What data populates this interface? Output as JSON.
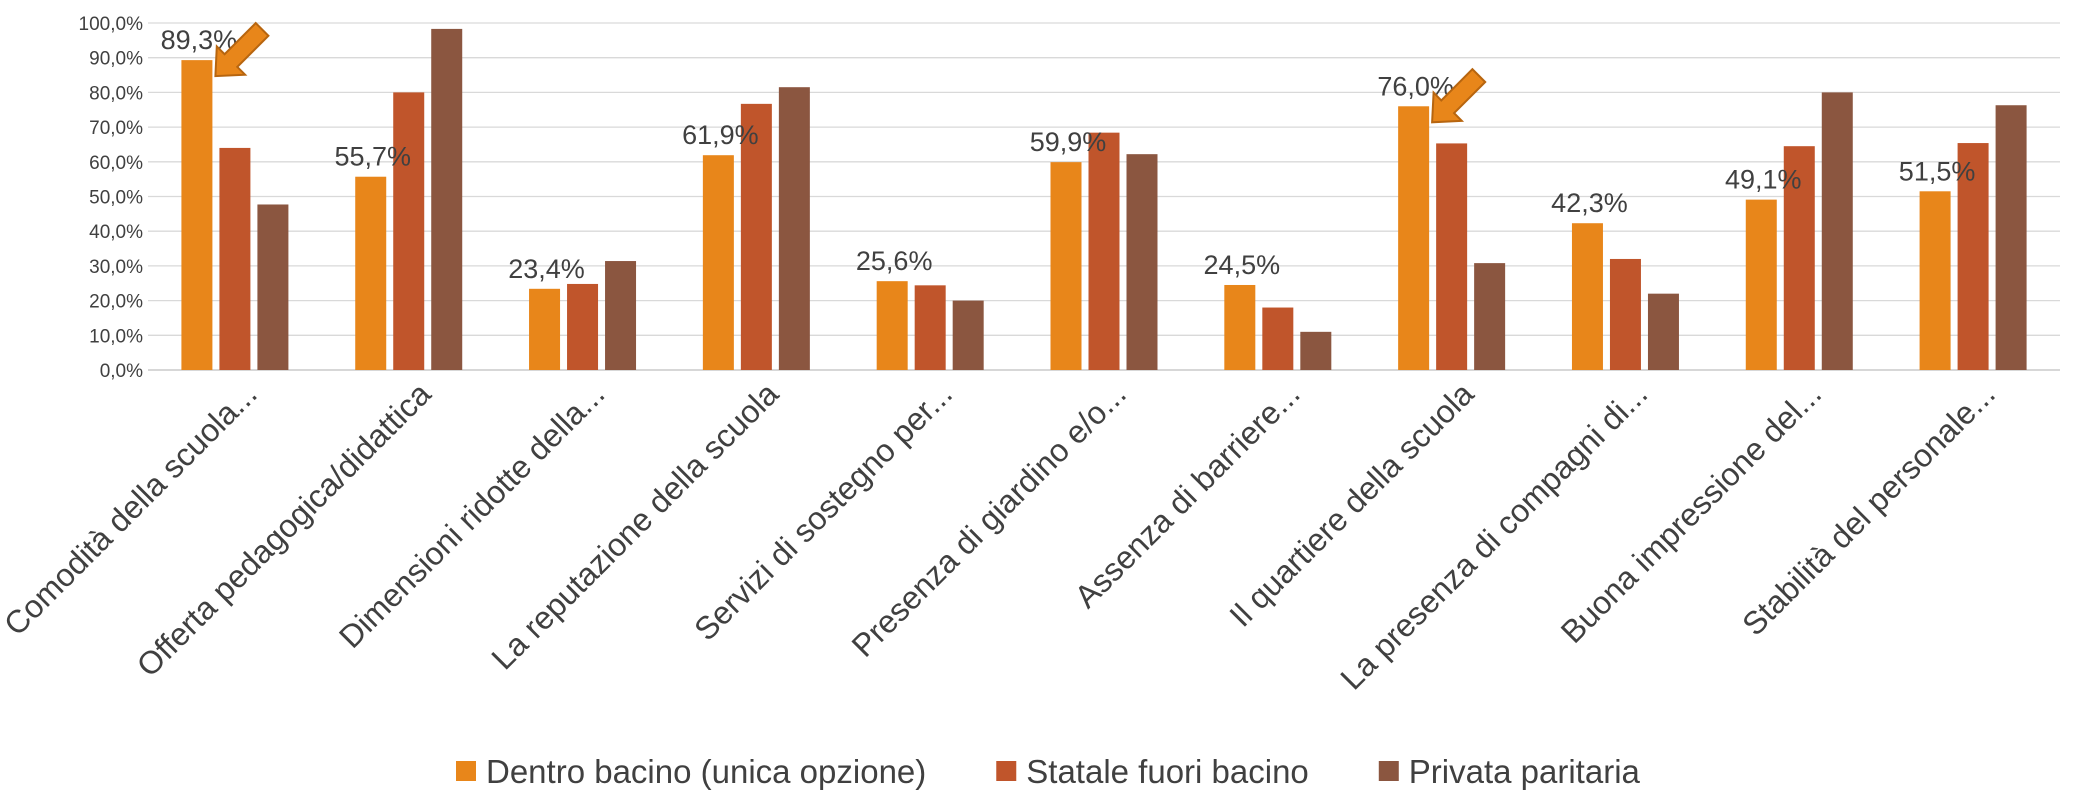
{
  "chart_data": {
    "type": "bar",
    "categories": [
      "Comodità della scuola...",
      "Offerta pedagogica/didattica",
      "Dimensioni ridotte della...",
      "La reputazione della scuola",
      "Servizi di sostegno per...",
      "Presenza di giardino e/o...",
      "Assenza di barriere...",
      "Il quartiere della scuola",
      "La presenza di compagni di...",
      "Buona impressione del...",
      "Stabilità del personale..."
    ],
    "series": [
      {
        "name": "Dentro bacino (unica opzione)",
        "color": "#E8861A",
        "values": [
          89.3,
          55.7,
          23.4,
          61.9,
          25.6,
          59.9,
          24.5,
          76.0,
          42.3,
          49.1,
          51.5
        ],
        "data_labels": [
          "89,3%",
          "55,7%",
          "23,4%",
          "61,9%",
          "25,6%",
          "59,9%",
          "24,5%",
          "76,0%",
          "42,3%",
          "49,1%",
          "51,5%"
        ]
      },
      {
        "name": "Statale fuori bacino",
        "color": "#C0552B",
        "values": [
          64.0,
          80.0,
          24.8,
          76.7,
          24.4,
          68.4,
          18.0,
          65.3,
          32.0,
          64.5,
          65.4
        ]
      },
      {
        "name": "Privata paritaria",
        "color": "#8B5640",
        "values": [
          47.7,
          98.3,
          31.4,
          81.5,
          20.0,
          62.2,
          11.0,
          30.8,
          22.0,
          80.0,
          76.3
        ]
      }
    ],
    "ylim": [
      0,
      100
    ],
    "yticks": [
      "0,0%",
      "10,0%",
      "20,0%",
      "30,0%",
      "40,0%",
      "50,0%",
      "60,0%",
      "70,0%",
      "80,0%",
      "90,0%",
      "100,0%"
    ],
    "grid": true,
    "legend_position": "bottom",
    "annotations": [
      {
        "type": "arrow",
        "color": "#E8861A",
        "points_to_category": 0
      },
      {
        "type": "arrow",
        "color": "#E8861A",
        "points_to_category": 7
      }
    ]
  }
}
